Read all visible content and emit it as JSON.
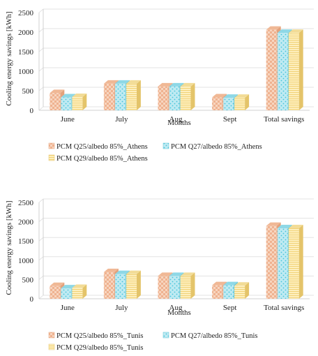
{
  "colors": {
    "grid": "#e3e3e3",
    "axis": "#d0d0d0",
    "q25_base": "#f7d5bf",
    "q25_pattern": "#e8956a",
    "q27_base": "#bfeaf2",
    "q27_pattern": "#45c4db",
    "q29_base": "#fff2c6",
    "q29_pattern": "#f1d277"
  },
  "chart_data": [
    {
      "type": "bar",
      "style": "3d-clustered-column",
      "categories": [
        "June",
        "July",
        "Aug",
        "Sept",
        "Total savings"
      ],
      "xlabel": "Months",
      "ylabel": "Cooling energy savings [kWh]",
      "ylim": [
        0,
        2500
      ],
      "yticks": [
        "0",
        "500",
        "1000",
        "1500",
        "2000",
        "2500"
      ],
      "grid": true,
      "legend": "bottom",
      "series": [
        {
          "name": "PCM Q25/albedo 85%_Athens",
          "pattern": "checker",
          "values": [
            440,
            680,
            610,
            330,
            2060
          ]
        },
        {
          "name": "PCM Q27/albedo 85%_Athens",
          "pattern": "dots",
          "values": [
            330,
            680,
            610,
            320,
            1980
          ]
        },
        {
          "name": "PCM Q29/albedo 85%_Athens",
          "pattern": "hlines",
          "values": [
            340,
            680,
            610,
            320,
            1980
          ]
        }
      ]
    },
    {
      "type": "bar",
      "style": "3d-clustered-column",
      "categories": [
        "June",
        "July",
        "Aug",
        "Sept",
        "Total savings"
      ],
      "xlabel": "Months",
      "ylabel": "Cooling energy savings [kWh]",
      "ylim": [
        0,
        2500
      ],
      "yticks": [
        "0",
        "500",
        "1000",
        "1500",
        "2000",
        "2500"
      ],
      "grid": true,
      "legend": "bottom",
      "series": [
        {
          "name": "PCM Q25/albedo 85%_Tunis",
          "pattern": "checker",
          "values": [
            330,
            690,
            590,
            350,
            1890
          ]
        },
        {
          "name": "PCM Q27/albedo 85%_Tunis",
          "pattern": "dots",
          "values": [
            270,
            640,
            590,
            350,
            1830
          ]
        },
        {
          "name": "PCM Q29/albedo 85%_Tunis",
          "pattern": "hlines",
          "values": [
            280,
            640,
            590,
            340,
            1830
          ]
        }
      ]
    }
  ]
}
